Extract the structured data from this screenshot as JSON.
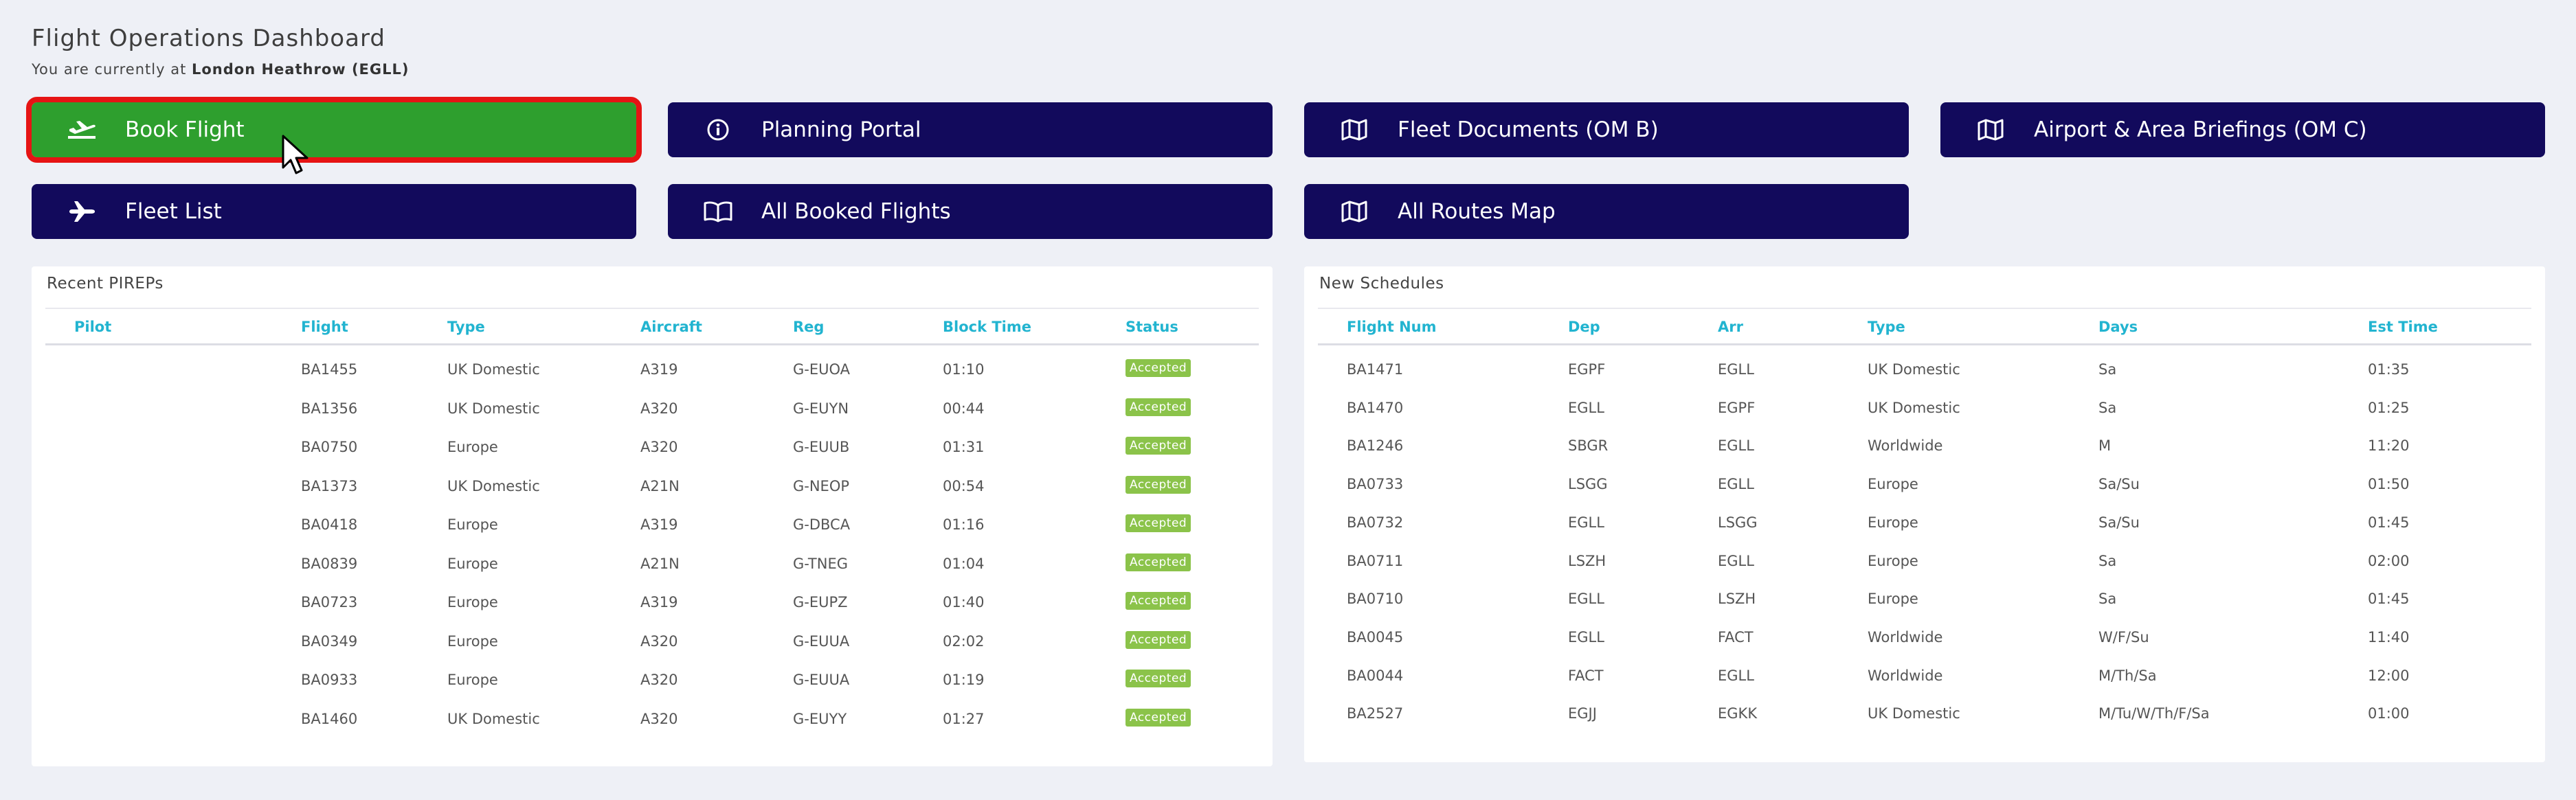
{
  "header": {
    "title": "Flight Operations Dashboard",
    "location_prefix": "You are currently at",
    "location_value": "London Heathrow (EGLL)"
  },
  "buttons": {
    "book_flight": "Book Flight",
    "planning_portal": "Planning Portal",
    "fleet_documents": "Fleet Documents (OM B)",
    "airport_briefings": "Airport & Area Briefings (OM C)",
    "fleet_list": "Fleet List",
    "all_booked_flights": "All Booked Flights",
    "all_routes_map": "All Routes Map"
  },
  "colors": {
    "primary_button": "#120a5c",
    "active_button": "#2e9f2e",
    "highlight_outline": "#e61414",
    "table_header": "#22b4d0",
    "badge": "#8bc34a"
  },
  "pireps": {
    "title": "Recent PIREPs",
    "columns": [
      "Pilot",
      "Flight",
      "Type",
      "Aircraft",
      "Reg",
      "Block Time",
      "Status"
    ],
    "rows": [
      [
        "",
        "BA1455",
        "UK Domestic",
        "A319",
        "G-EUOA",
        "01:10",
        "Accepted"
      ],
      [
        "",
        "BA1356",
        "UK Domestic",
        "A320",
        "G-EUYN",
        "00:44",
        "Accepted"
      ],
      [
        "",
        "BA0750",
        "Europe",
        "A320",
        "G-EUUB",
        "01:31",
        "Accepted"
      ],
      [
        "",
        "BA1373",
        "UK Domestic",
        "A21N",
        "G-NEOP",
        "00:54",
        "Accepted"
      ],
      [
        "",
        "BA0418",
        "Europe",
        "A319",
        "G-DBCA",
        "01:16",
        "Accepted"
      ],
      [
        "",
        "BA0839",
        "Europe",
        "A21N",
        "G-TNEG",
        "01:04",
        "Accepted"
      ],
      [
        "",
        "BA0723",
        "Europe",
        "A319",
        "G-EUPZ",
        "01:40",
        "Accepted"
      ],
      [
        "",
        "BA0349",
        "Europe",
        "A320",
        "G-EUUA",
        "02:02",
        "Accepted"
      ],
      [
        "",
        "BA0933",
        "Europe",
        "A320",
        "G-EUUA",
        "01:19",
        "Accepted"
      ],
      [
        "",
        "BA1460",
        "UK Domestic",
        "A320",
        "G-EUYY",
        "01:27",
        "Accepted"
      ]
    ]
  },
  "schedules": {
    "title": "New Schedules",
    "columns": [
      "Flight Num",
      "Dep",
      "Arr",
      "Type",
      "Days",
      "Est Time"
    ],
    "rows": [
      [
        "BA1471",
        "EGPF",
        "EGLL",
        "UK Domestic",
        "Sa",
        "01:35"
      ],
      [
        "BA1470",
        "EGLL",
        "EGPF",
        "UK Domestic",
        "Sa",
        "01:25"
      ],
      [
        "BA1246",
        "SBGR",
        "EGLL",
        "Worldwide",
        "M",
        "11:20"
      ],
      [
        "BA0733",
        "LSGG",
        "EGLL",
        "Europe",
        "Sa/Su",
        "01:50"
      ],
      [
        "BA0732",
        "EGLL",
        "LSGG",
        "Europe",
        "Sa/Su",
        "01:45"
      ],
      [
        "BA0711",
        "LSZH",
        "EGLL",
        "Europe",
        "Sa",
        "02:00"
      ],
      [
        "BA0710",
        "EGLL",
        "LSZH",
        "Europe",
        "Sa",
        "01:45"
      ],
      [
        "BA0045",
        "EGLL",
        "FACT",
        "Worldwide",
        "W/F/Su",
        "11:40"
      ],
      [
        "BA0044",
        "FACT",
        "EGLL",
        "Worldwide",
        "M/Th/Sa",
        "12:00"
      ],
      [
        "BA2527",
        "EGJJ",
        "EGKK",
        "UK Domestic",
        "M/Tu/W/Th/F/Sa",
        "01:00"
      ]
    ]
  }
}
